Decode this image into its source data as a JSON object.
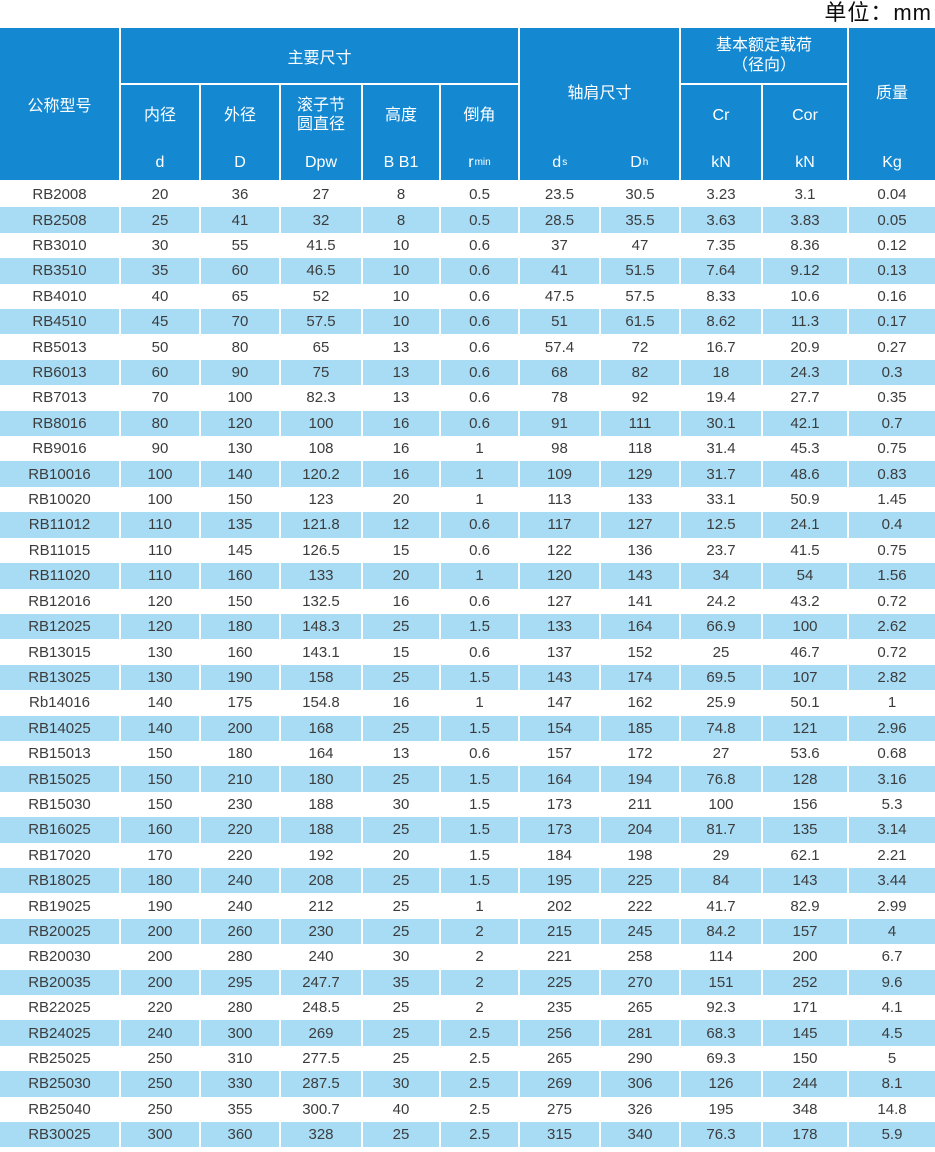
{
  "unit_label": "单位：mm",
  "colors": {
    "header_blue": "#1489d2",
    "stripe_blue": "#a8dcf5",
    "header_text": "#ffffff",
    "body_text": "#3c3c3c"
  },
  "table": {
    "header": {
      "model_label": "公称型号",
      "main_dims_label": "主要尺寸",
      "shoulder_label": "轴肩尺寸",
      "load_label_line1": "基本额定载荷",
      "load_label_line2": "（径向）",
      "mass_label": "质量",
      "mass_symbol": "Kg",
      "inner_dia_label": "内径",
      "inner_dia_symbol": "d",
      "outer_dia_label": "外径",
      "outer_dia_symbol": "D",
      "pitch_dia_label_line1": "滚子节",
      "pitch_dia_label_line2": "圆直径",
      "pitch_dia_symbol": "Dpw",
      "height_label": "高度",
      "height_symbol": "B B1",
      "chamfer_label": "倒角",
      "chamfer_symbol_base": "r",
      "chamfer_symbol_sub": "min",
      "shoulder_ds_base": "d",
      "shoulder_ds_sub": "s",
      "shoulder_dh_base": "D",
      "shoulder_dh_sub": "h",
      "cr_label": "Cr",
      "cr_unit": "kN",
      "cor_label": "Cor",
      "cor_unit": "kN"
    },
    "rows": [
      [
        "RB2008",
        "20",
        "36",
        "27",
        "8",
        "0.5",
        "23.5",
        "30.5",
        "3.23",
        "3.1",
        "0.04"
      ],
      [
        "RB2508",
        "25",
        "41",
        "32",
        "8",
        "0.5",
        "28.5",
        "35.5",
        "3.63",
        "3.83",
        "0.05"
      ],
      [
        "RB3010",
        "30",
        "55",
        "41.5",
        "10",
        "0.6",
        "37",
        "47",
        "7.35",
        "8.36",
        "0.12"
      ],
      [
        "RB3510",
        "35",
        "60",
        "46.5",
        "10",
        "0.6",
        "41",
        "51.5",
        "7.64",
        "9.12",
        "0.13"
      ],
      [
        "RB4010",
        "40",
        "65",
        "52",
        "10",
        "0.6",
        "47.5",
        "57.5",
        "8.33",
        "10.6",
        "0.16"
      ],
      [
        "RB4510",
        "45",
        "70",
        "57.5",
        "10",
        "0.6",
        "51",
        "61.5",
        "8.62",
        "11.3",
        "0.17"
      ],
      [
        "RB5013",
        "50",
        "80",
        "65",
        "13",
        "0.6",
        "57.4",
        "72",
        "16.7",
        "20.9",
        "0.27"
      ],
      [
        "RB6013",
        "60",
        "90",
        "75",
        "13",
        "0.6",
        "68",
        "82",
        "18",
        "24.3",
        "0.3"
      ],
      [
        "RB7013",
        "70",
        "100",
        "82.3",
        "13",
        "0.6",
        "78",
        "92",
        "19.4",
        "27.7",
        "0.35"
      ],
      [
        "RB8016",
        "80",
        "120",
        "100",
        "16",
        "0.6",
        "91",
        "111",
        "30.1",
        "42.1",
        "0.7"
      ],
      [
        "RB9016",
        "90",
        "130",
        "108",
        "16",
        "1",
        "98",
        "118",
        "31.4",
        "45.3",
        "0.75"
      ],
      [
        "RB10016",
        "100",
        "140",
        "120.2",
        "16",
        "1",
        "109",
        "129",
        "31.7",
        "48.6",
        "0.83"
      ],
      [
        "RB10020",
        "100",
        "150",
        "123",
        "20",
        "1",
        "113",
        "133",
        "33.1",
        "50.9",
        "1.45"
      ],
      [
        "RB11012",
        "110",
        "135",
        "121.8",
        "12",
        "0.6",
        "117",
        "127",
        "12.5",
        "24.1",
        "0.4"
      ],
      [
        "RB11015",
        "110",
        "145",
        "126.5",
        "15",
        "0.6",
        "122",
        "136",
        "23.7",
        "41.5",
        "0.75"
      ],
      [
        "RB11020",
        "110",
        "160",
        "133",
        "20",
        "1",
        "120",
        "143",
        "34",
        "54",
        "1.56"
      ],
      [
        "RB12016",
        "120",
        "150",
        "132.5",
        "16",
        "0.6",
        "127",
        "141",
        "24.2",
        "43.2",
        "0.72"
      ],
      [
        "RB12025",
        "120",
        "180",
        "148.3",
        "25",
        "1.5",
        "133",
        "164",
        "66.9",
        "100",
        "2.62"
      ],
      [
        "RB13015",
        "130",
        "160",
        "143.1",
        "15",
        "0.6",
        "137",
        "152",
        "25",
        "46.7",
        "0.72"
      ],
      [
        "RB13025",
        "130",
        "190",
        "158",
        "25",
        "1.5",
        "143",
        "174",
        "69.5",
        "107",
        "2.82"
      ],
      [
        "Rb14016",
        "140",
        "175",
        "154.8",
        "16",
        "1",
        "147",
        "162",
        "25.9",
        "50.1",
        "1"
      ],
      [
        "RB14025",
        "140",
        "200",
        "168",
        "25",
        "1.5",
        "154",
        "185",
        "74.8",
        "121",
        "2.96"
      ],
      [
        "RB15013",
        "150",
        "180",
        "164",
        "13",
        "0.6",
        "157",
        "172",
        "27",
        "53.6",
        "0.68"
      ],
      [
        "RB15025",
        "150",
        "210",
        "180",
        "25",
        "1.5",
        "164",
        "194",
        "76.8",
        "128",
        "3.16"
      ],
      [
        "RB15030",
        "150",
        "230",
        "188",
        "30",
        "1.5",
        "173",
        "211",
        "100",
        "156",
        "5.3"
      ],
      [
        "RB16025",
        "160",
        "220",
        "188",
        "25",
        "1.5",
        "173",
        "204",
        "81.7",
        "135",
        "3.14"
      ],
      [
        "RB17020",
        "170",
        "220",
        "192",
        "20",
        "1.5",
        "184",
        "198",
        "29",
        "62.1",
        "2.21"
      ],
      [
        "RB18025",
        "180",
        "240",
        "208",
        "25",
        "1.5",
        "195",
        "225",
        "84",
        "143",
        "3.44"
      ],
      [
        "RB19025",
        "190",
        "240",
        "212",
        "25",
        "1",
        "202",
        "222",
        "41.7",
        "82.9",
        "2.99"
      ],
      [
        "RB20025",
        "200",
        "260",
        "230",
        "25",
        "2",
        "215",
        "245",
        "84.2",
        "157",
        "4"
      ],
      [
        "RB20030",
        "200",
        "280",
        "240",
        "30",
        "2",
        "221",
        "258",
        "114",
        "200",
        "6.7"
      ],
      [
        "RB20035",
        "200",
        "295",
        "247.7",
        "35",
        "2",
        "225",
        "270",
        "151",
        "252",
        "9.6"
      ],
      [
        "RB22025",
        "220",
        "280",
        "248.5",
        "25",
        "2",
        "235",
        "265",
        "92.3",
        "171",
        "4.1"
      ],
      [
        "RB24025",
        "240",
        "300",
        "269",
        "25",
        "2.5",
        "256",
        "281",
        "68.3",
        "145",
        "4.5"
      ],
      [
        "RB25025",
        "250",
        "310",
        "277.5",
        "25",
        "2.5",
        "265",
        "290",
        "69.3",
        "150",
        "5"
      ],
      [
        "RB25030",
        "250",
        "330",
        "287.5",
        "30",
        "2.5",
        "269",
        "306",
        "126",
        "244",
        "8.1"
      ],
      [
        "RB25040",
        "250",
        "355",
        "300.7",
        "40",
        "2.5",
        "275",
        "326",
        "195",
        "348",
        "14.8"
      ],
      [
        "RB30025",
        "300",
        "360",
        "328",
        "25",
        "2.5",
        "315",
        "340",
        "76.3",
        "178",
        "5.9"
      ]
    ]
  }
}
